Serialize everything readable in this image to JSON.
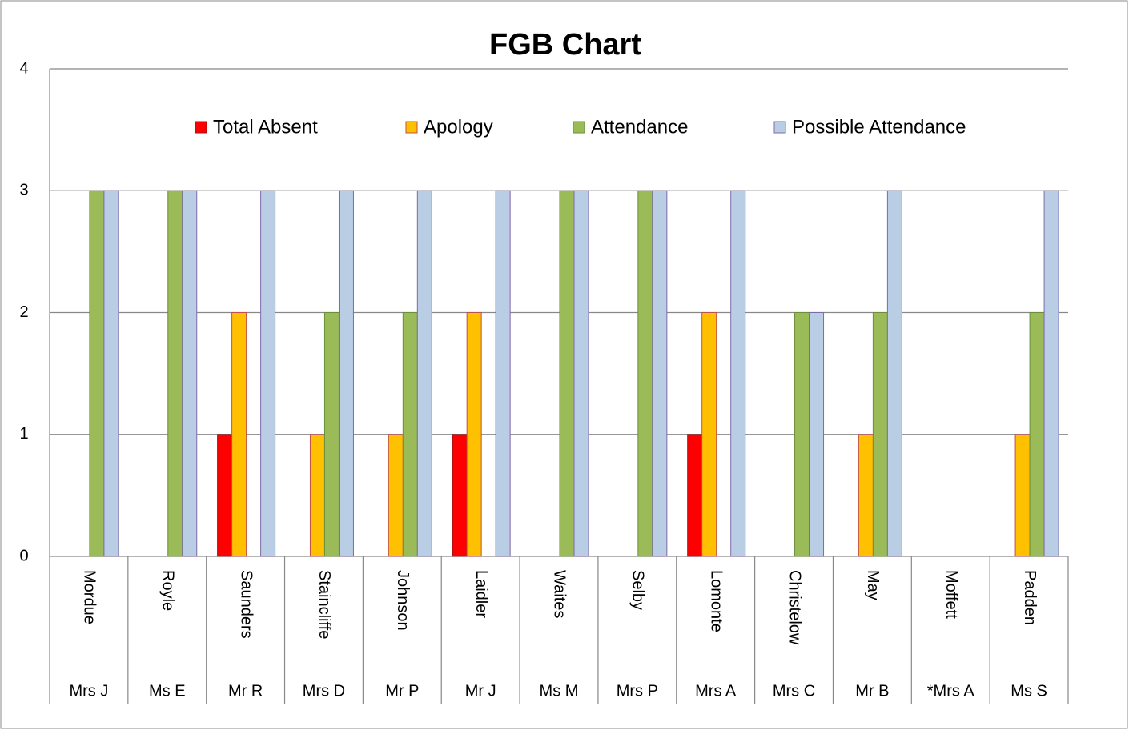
{
  "chart_data": {
    "type": "bar",
    "title": "FGB Chart",
    "categories": [
      "Mordue",
      "Royle",
      "Saunders",
      "Staincliffe",
      "Johnson",
      "Laidler",
      "Waites",
      "Selby",
      "Lomonte",
      "Christelow",
      "May",
      "Moffett",
      "Padden"
    ],
    "category_titles": [
      "Mrs J",
      "Ms E",
      "Mr R",
      "Mrs D",
      "Mr P",
      "Mr J",
      "Ms M",
      "Mrs P",
      "Mrs A",
      "Mrs C",
      "Mr B",
      "*Mrs A",
      "Ms S"
    ],
    "series": [
      {
        "name": "Total Absent",
        "color": "#ff0000",
        "border": "#8b1a1a",
        "values": [
          0,
          0,
          1,
          0,
          0,
          1,
          0,
          0,
          1,
          0,
          0,
          0,
          0
        ]
      },
      {
        "name": "Apology",
        "color": "#ffc000",
        "border": "#c0504d",
        "values": [
          0,
          0,
          2,
          1,
          1,
          2,
          0,
          0,
          2,
          0,
          1,
          0,
          1
        ]
      },
      {
        "name": "Attendance",
        "color": "#9bbb59",
        "border": "#6b8e3a",
        "values": [
          3,
          3,
          0,
          2,
          2,
          0,
          3,
          3,
          0,
          2,
          2,
          0,
          2
        ]
      },
      {
        "name": "Possible Attendance",
        "color": "#b9cde5",
        "border": "#7f6aa8",
        "values": [
          3,
          3,
          3,
          3,
          3,
          3,
          3,
          3,
          3,
          2,
          3,
          0,
          3
        ]
      }
    ],
    "ylim": [
      0,
      4
    ],
    "yticks": [
      0,
      1,
      2,
      3,
      4
    ],
    "grid": true,
    "legend": "top"
  }
}
